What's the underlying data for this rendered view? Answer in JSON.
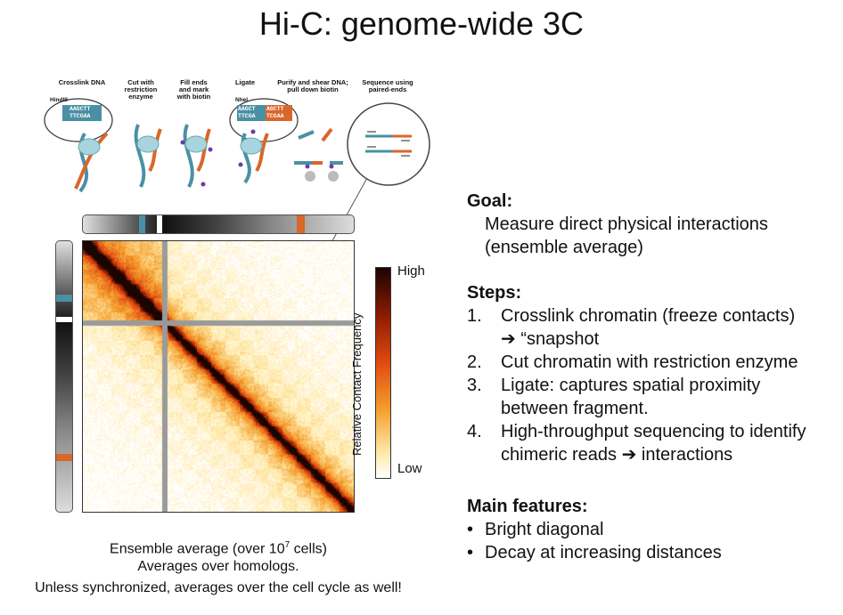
{
  "title": "Hi-C: genome-wide 3C",
  "steps_diagram": {
    "labels": [
      "Crosslink DNA",
      "Cut with\nrestriction\nenzyme",
      "Fill ends\nand mark\nwith biotin",
      "Ligate",
      "Purify and shear DNA;\npull down biotin",
      "Sequence using\npaired-ends"
    ],
    "enzyme1": "HindIII",
    "enzyme1_top": "AAGCTT",
    "enzyme1_bottom": "TTCGAA",
    "enzyme2": "NheI",
    "lig_top_a": "AAGCT",
    "lig_top_b": "AGCTT",
    "lig_bottom_a": "TTCGA",
    "lig_bottom_b": "TCGAA"
  },
  "colorbar": {
    "high": "High",
    "low": "Low",
    "title": "Relative Contact Frequency"
  },
  "goal": {
    "heading": "Goal:",
    "lines": [
      "Measure direct physical interactions",
      "(ensemble average)"
    ]
  },
  "steps": {
    "heading": "Steps:",
    "items": [
      {
        "num": "1.",
        "lines": [
          "Crosslink chromatin (freeze contacts)",
          "➔ “snapshot"
        ]
      },
      {
        "num": "2.",
        "lines": [
          "Cut chromatin with restriction enzyme"
        ]
      },
      {
        "num": "3.",
        "lines": [
          "Ligate: captures spatial proximity",
          "between fragment."
        ]
      },
      {
        "num": "4.",
        "lines": [
          "High-throughput sequencing to identify",
          "chimeric reads ➔ interactions"
        ]
      }
    ]
  },
  "features": {
    "heading": "Main features:",
    "items": [
      "Bright diagonal",
      "Decay at increasing distances"
    ]
  },
  "caption": {
    "line1_pre": "Ensemble average (over 10",
    "line1_sup": "7",
    "line1_post": " cells)",
    "line2": "Averages over homologs.",
    "line3": "Unless synchronized, averages over the cell cycle as well!"
  },
  "colors": {
    "teal": "#4a90a4",
    "orange": "#d9662a",
    "heat_dark": "#1a0500"
  }
}
